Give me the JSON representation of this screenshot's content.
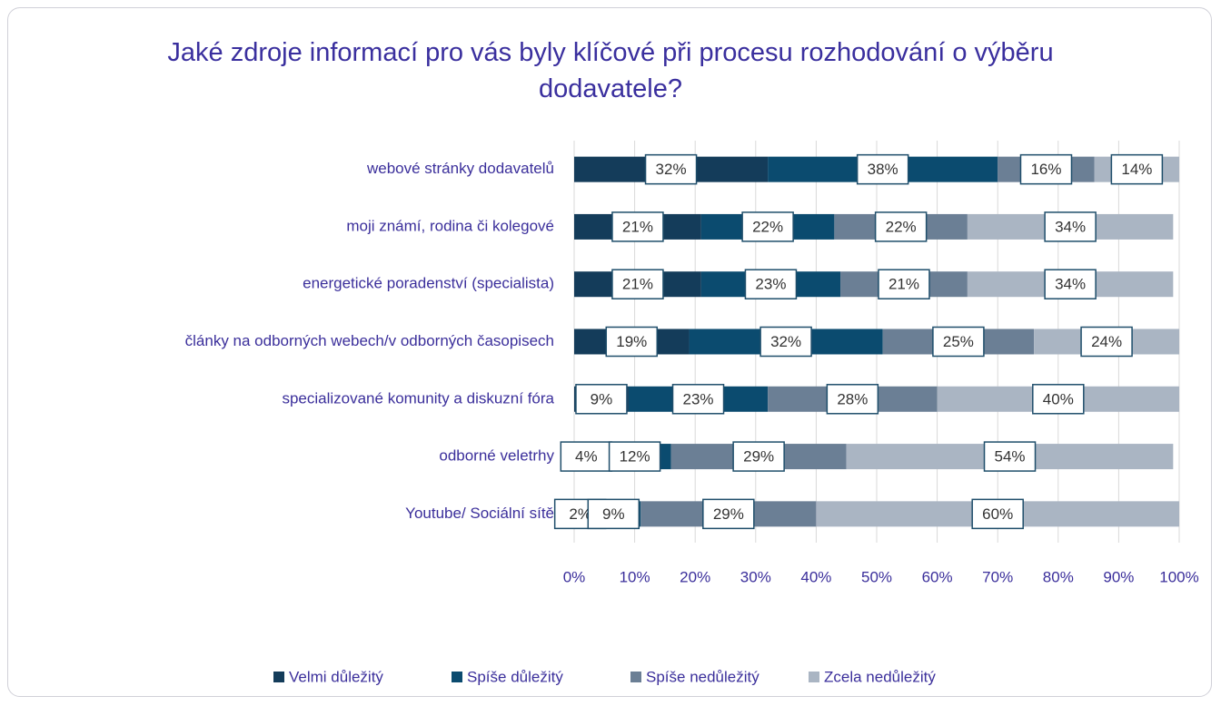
{
  "chart_data": {
    "type": "bar",
    "orientation": "horizontal",
    "stacked": true,
    "title": "Jaké zdroje informací pro vás byly klíčové při procesu rozhodování o výběru dodavatele?",
    "categories": [
      "webové stránky dodavatelů",
      "moji známí, rodina či kolegové",
      "energetické poradenství (specialista)",
      "články na odborných webech/v odborných časopisech",
      "specializované komunity a diskuzní fóra",
      "odborné veletrhy",
      "Youtube/ Sociální sítě"
    ],
    "series": [
      {
        "name": "Velmi důležitý",
        "color": "#143c5a",
        "values": [
          32,
          21,
          21,
          19,
          9,
          4,
          2
        ],
        "value_labels": [
          "32%",
          "21%",
          "21%",
          "19%",
          "9%",
          "4%",
          "2%"
        ]
      },
      {
        "name": "Spíše důležitý",
        "color": "#0b4b6f",
        "values": [
          38,
          22,
          23,
          32,
          23,
          12,
          9
        ],
        "value_labels": [
          "38%",
          "22%",
          "23%",
          "32%",
          "23%",
          "12%",
          "9%"
        ]
      },
      {
        "name": "Spíše nedůležitý",
        "color": "#6b7f95",
        "values": [
          16,
          22,
          21,
          25,
          28,
          29,
          29
        ],
        "value_labels": [
          "16%",
          "22%",
          "21%",
          "25%",
          "28%",
          "29%",
          "29%"
        ]
      },
      {
        "name": "Zcela nedůležitý",
        "color": "#aab5c3",
        "values": [
          14,
          34,
          34,
          24,
          40,
          54,
          60
        ],
        "value_labels": [
          "14%",
          "34%",
          "34%",
          "24%",
          "40%",
          "54%",
          "60%"
        ]
      }
    ],
    "xlim": [
      0,
      100
    ],
    "xticks": [
      {
        "value": 0,
        "label": "0%"
      },
      {
        "value": 10,
        "label": "10%"
      },
      {
        "value": 20,
        "label": "20%"
      },
      {
        "value": 30,
        "label": "30%"
      },
      {
        "value": 40,
        "label": "40%"
      },
      {
        "value": 50,
        "label": "50%"
      },
      {
        "value": 60,
        "label": "60%"
      },
      {
        "value": 70,
        "label": "70%"
      },
      {
        "value": 80,
        "label": "80%"
      },
      {
        "value": 90,
        "label": "90%"
      },
      {
        "value": 100,
        "label": "100%"
      }
    ],
    "grid": true,
    "legend": "bottom"
  }
}
